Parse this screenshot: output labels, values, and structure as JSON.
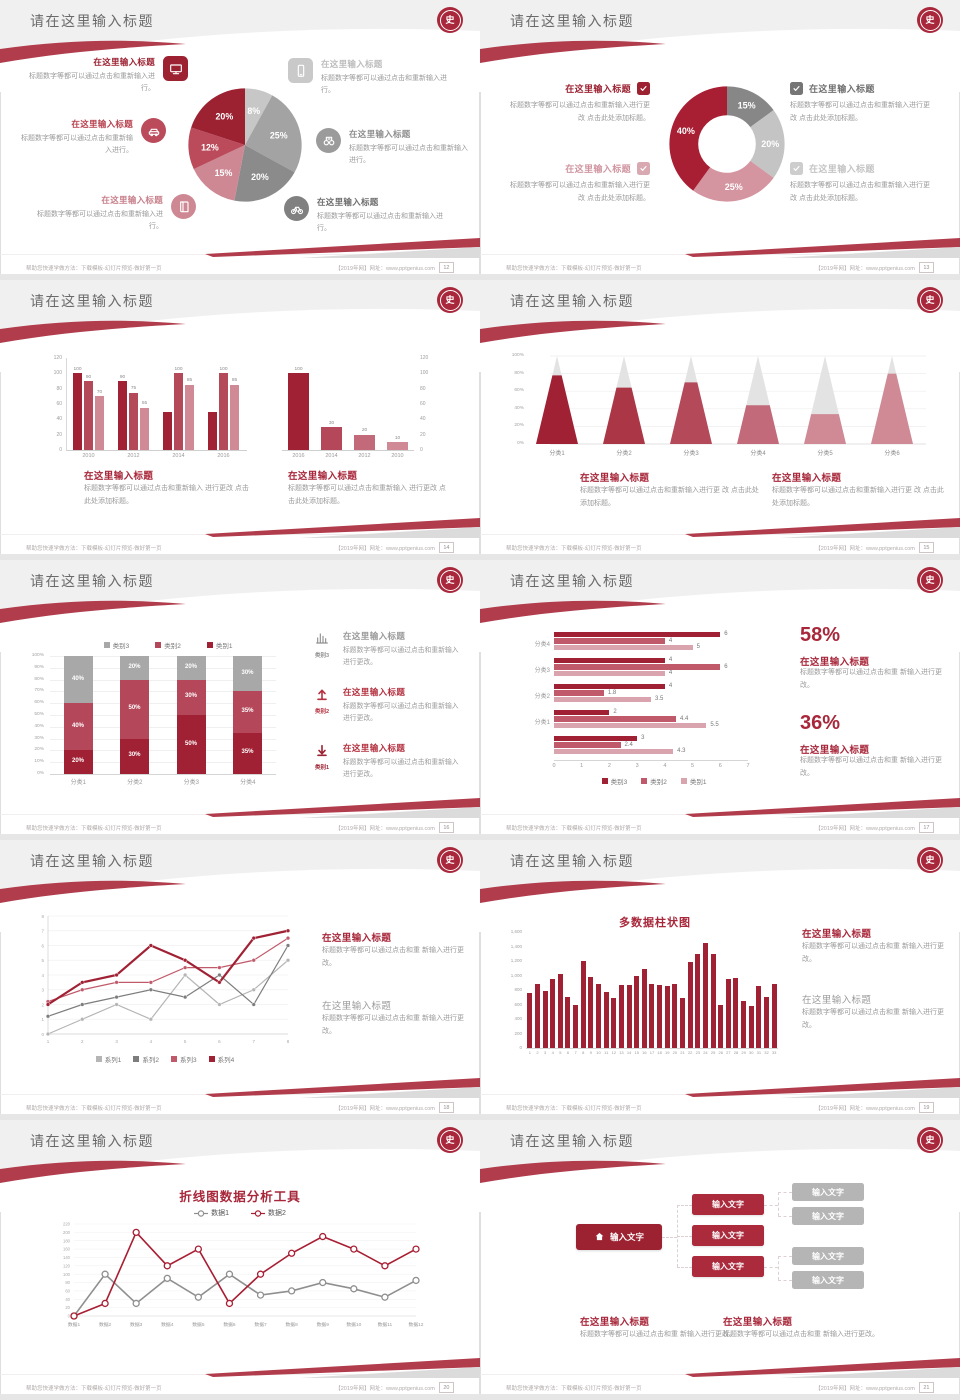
{
  "logo_char": "史",
  "footer": {
    "left": "帮助您快速学做方法：下载模板-幻灯片预览-做好第一页",
    "right": "【2019年网】网址：www.pptgenius.com"
  },
  "colors": {
    "accent": "#a8273a",
    "dark_red": "#9c2232",
    "mid_red": "#b4485a",
    "rose": "#cf8a96",
    "light_rose": "#d9a4ae",
    "gray_dark": "#7c7c7c",
    "gray": "#a6a6a6",
    "gray_light": "#c6c6c6",
    "deco_red": "#b03c4c"
  },
  "slides": [
    {
      "page": "12",
      "title": "请在这里输入标题",
      "type": "pie-features",
      "chart_data": {
        "type": "pie",
        "slices": [
          {
            "label": "8%",
            "value": 8,
            "color": "#c7c7c7"
          },
          {
            "label": "25%",
            "value": 25,
            "color": "#a3a3a3"
          },
          {
            "label": "20%",
            "value": 20,
            "color": "#8b8b8b"
          },
          {
            "label": "15%",
            "value": 15,
            "color": "#cd8894"
          },
          {
            "label": "12%",
            "value": 12,
            "color": "#bb4b5b"
          },
          {
            "label": "20%",
            "value": 20,
            "color": "#9c2232"
          }
        ]
      },
      "features_left": [
        {
          "title": "在这里输入标题",
          "title_color": "#9c2232",
          "text": "标题数字等都可以通过点击和重新输入进行。",
          "icon": "monitor-icon",
          "icon_bg": "#9c2232",
          "icon_shape": "square"
        },
        {
          "title": "在这里输入标题",
          "title_color": "#b8414f",
          "text": "标题数字等都可以通过点击和重新输入进行。",
          "icon": "car-icon",
          "icon_bg": "#bb4b5b",
          "icon_shape": "circle"
        },
        {
          "title": "在这里输入标题",
          "title_color": "#c9808b",
          "text": "标题数字等都可以通过点击和重新输入进行。",
          "icon": "book-icon",
          "icon_bg": "#cd8894",
          "icon_shape": "circle"
        }
      ],
      "features_right": [
        {
          "title": "在这里输入标题",
          "title_color": "#bdbdbd",
          "text": "标题数字等都可以通过点击和重新输入进行。",
          "icon": "phone-icon",
          "icon_bg": "#c9c9c9",
          "icon_shape": "square"
        },
        {
          "title": "在这里输入标题",
          "title_color": "#8f8f8f",
          "text": "标题数字等都可以通过点击和重新输入进行。",
          "icon": "binoculars-icon",
          "icon_bg": "#9b9b9b",
          "icon_shape": "circle"
        },
        {
          "title": "在这里输入标题",
          "title_color": "#6e6e6e",
          "text": "标题数字等都可以通过点击和重新输入进行。",
          "icon": "bike-icon",
          "icon_bg": "#808080",
          "icon_shape": "circle"
        }
      ]
    },
    {
      "page": "13",
      "title": "请在这里输入标题",
      "type": "donut-checklist",
      "chart_data": {
        "type": "pie",
        "donut": true,
        "slices": [
          {
            "label": "15%",
            "value": 15,
            "color": "#878787"
          },
          {
            "label": "20%",
            "value": 20,
            "color": "#c4c4c4"
          },
          {
            "label": "25%",
            "value": 25,
            "color": "#d494a0"
          },
          {
            "label": "40%",
            "value": 40,
            "color": "#a81e33"
          }
        ]
      },
      "items": [
        {
          "side": "left",
          "title": "在这里输入标题",
          "title_color": "#9c2232",
          "check_color": "#9c2232",
          "text": "标题数字等都可以通过点击和重新输入进行更改 点击此处添加标题。"
        },
        {
          "side": "left",
          "title": "在这里输入标题",
          "title_color": "#d096a1",
          "check_color": "#d9a9b2",
          "text": "标题数字等都可以通过点击和重新输入进行更改 点击此处添加标题。"
        },
        {
          "side": "right",
          "title": "在这里输入标题",
          "title_color": "#6f6f6f",
          "check_color": "#757575",
          "text": "标题数字等都可以通过点击和重新输入进行更改 点击此处添加标题。"
        },
        {
          "side": "right",
          "title": "在这里输入标题",
          "title_color": "#c4c4c4",
          "check_color": "#cdcdcd",
          "text": "标题数字等都可以通过点击和重新输入进行更改 点击此处添加标题。"
        }
      ]
    },
    {
      "page": "14",
      "title": "请在这里输入标题",
      "type": "dual-bars",
      "chart_data": [
        {
          "type": "bar",
          "categories": [
            "2010",
            "2012",
            "2014",
            "2016"
          ],
          "group_values": [
            [
              100,
              90,
              70
            ],
            [
              90,
              75,
              55
            ],
            [
              50,
              100,
              85
            ],
            [
              50,
              100,
              85
            ]
          ],
          "value_labels": [
            [
              "100",
              "90",
              "70"
            ],
            [
              "90",
              "75",
              "55"
            ],
            [
              null,
              "100",
              "85"
            ],
            [
              null,
              "100",
              "85"
            ]
          ],
          "ylim": [
            0,
            120
          ],
          "yticks": [
            0,
            20,
            40,
            60,
            80,
            100,
            120
          ],
          "colors": [
            "#a02134",
            "#b4495a",
            "#cf8a96"
          ]
        },
        {
          "type": "bar",
          "categories": [
            "2016",
            "2014",
            "2012",
            "2010"
          ],
          "values": [
            100,
            30,
            20,
            10
          ],
          "value_labels": [
            "100",
            "30",
            "20",
            "10"
          ],
          "ylim": [
            0,
            120
          ],
          "yticks": [
            0,
            20,
            40,
            60,
            80,
            100,
            120
          ],
          "colors": [
            "#a02134",
            "#b4485a",
            "#c2697a",
            "#cf8a96"
          ]
        }
      ],
      "sections": [
        {
          "title": "在这里输入标题",
          "text": "标题数字等都可以通过点击和重新输入 进行更改 点击此处添加标题。"
        },
        {
          "title": "在这里输入标题",
          "text": "标题数字等都可以通过点击和重新输入 进行更改 点击此处添加标题。"
        }
      ]
    },
    {
      "page": "15",
      "title": "请在这里输入标题",
      "type": "pyramids",
      "chart_data": {
        "type": "pyramid",
        "categories": [
          "分类1",
          "分类2",
          "分类3",
          "分类4",
          "分类5",
          "分类6"
        ],
        "values_pct": [
          78,
          64,
          70,
          44,
          34,
          80
        ],
        "colors": [
          "#a02134",
          "#ab3746",
          "#b4495a",
          "#c2697a",
          "#cf8a96",
          "#cf8a96"
        ],
        "yticks": [
          "0%",
          "20%",
          "40%",
          "60%",
          "80%",
          "100%"
        ]
      },
      "sections": [
        {
          "title": "在这里输入标题",
          "text": "标题数字等都可以通过点击和重新输入进行更 改 点击此处添加标题。"
        },
        {
          "title": "在这里输入标题",
          "text": "标题数字等都可以通过点击和重新输入进行更 改 点击此处添加标题。"
        }
      ]
    },
    {
      "page": "16",
      "title": "请在这里输入标题",
      "type": "stacked-features",
      "chart_data": {
        "type": "bar_stacked",
        "categories": [
          "分类1",
          "分类2",
          "分类3",
          "分类4"
        ],
        "series": [
          {
            "name": "类别1",
            "color": "#a02134",
            "values": [
              20,
              30,
              50,
              35
            ]
          },
          {
            "name": "类别2",
            "color": "#b4485a",
            "values": [
              40,
              50,
              30,
              35
            ]
          },
          {
            "name": "类别3",
            "color": "#a8a8a8",
            "values": [
              40,
              20,
              20,
              30
            ]
          }
        ],
        "legend": [
          {
            "label": "类别3",
            "color": "#a8a8a8"
          },
          {
            "label": "类别2",
            "color": "#b4485a"
          },
          {
            "label": "类别1",
            "color": "#a02134"
          }
        ],
        "ylim_pct": [
          0,
          100
        ]
      },
      "features": [
        {
          "icon": "bar-chart-icon",
          "icon_color": "#8f8f8f",
          "caption": "类别3",
          "title": "在这里输入标题",
          "title_color": "#9a9a9a",
          "text": "标题数字等都可以通过点击和重新输入进行更改。"
        },
        {
          "icon": "arrow-up-icon",
          "icon_color": "#b4303f",
          "caption": "类别2",
          "title": "在这里输入标题",
          "title_color": "#b4303f",
          "text": "标题数字等都可以通过点击和重新输入进行更改。"
        },
        {
          "icon": "arrow-down-icon",
          "icon_color": "#9c2232",
          "caption": "类别1",
          "title": "在这里输入标题",
          "title_color": "#b4303f",
          "text": "标题数字等都可以通过点击和重新输入进行更改。"
        }
      ]
    },
    {
      "page": "17",
      "title": "请在这里输入标题",
      "type": "hbars-stats",
      "chart_data": {
        "type": "bar_horizontal",
        "groups": [
          {
            "label": "分类4",
            "values": [
              6,
              4,
              5
            ]
          },
          {
            "label": "分类3",
            "values": [
              4,
              6,
              4
            ]
          },
          {
            "label": "分类2",
            "values": [
              4,
              1.8,
              3.5
            ]
          },
          {
            "label": "分类1",
            "values": [
              2,
              4.4,
              5.5
            ]
          },
          {
            "label": "",
            "values": [
              3,
              2.4,
              4.3
            ]
          }
        ],
        "series_colors": [
          "#a02134",
          "#c05a6b",
          "#d9a4ae"
        ],
        "xticks": [
          0,
          1,
          2,
          3,
          4,
          5,
          6,
          7
        ],
        "legend": [
          {
            "label": "类别3",
            "color": "#a02134"
          },
          {
            "label": "类别2",
            "color": "#c05a6b"
          },
          {
            "label": "类别1",
            "color": "#d9a4ae"
          }
        ]
      },
      "stats": [
        {
          "pct": "58%",
          "title": "在这里输入标题",
          "text": "标题数字等都可以通过点击和重 新输入进行更改。"
        },
        {
          "pct": "36%",
          "title": "在这里输入标题",
          "text": "标题数字等都可以通过点击和重 新输入进行更改。"
        }
      ]
    },
    {
      "page": "18",
      "title": "请在这里输入标题",
      "type": "lines-text",
      "chart_data": {
        "type": "line",
        "x": [
          1,
          2,
          3,
          4,
          5,
          6,
          7,
          8
        ],
        "ylim": [
          0,
          8
        ],
        "series": [
          {
            "name": "系列1",
            "color": "#b5b5b5",
            "values": [
              0,
              1,
              2,
              1,
              4,
              2,
              3,
              5
            ]
          },
          {
            "name": "系列2",
            "color": "#7d7d7d",
            "values": [
              1.2,
              2,
              2.5,
              3,
              2.5,
              4,
              2,
              6
            ]
          },
          {
            "name": "系列3",
            "color": "#c05a6b",
            "values": [
              2.2,
              3,
              3.5,
              3.5,
              4.5,
              4.5,
              5,
              6.5
            ]
          },
          {
            "name": "系列4",
            "color": "#a02134",
            "values": [
              2,
              3.5,
              4,
              6,
              5,
              3.5,
              6.5,
              7
            ],
            "thick": true
          }
        ]
      },
      "sections": [
        {
          "title": "在这里输入标题",
          "title_style": "red",
          "text": "标题数字等都可以通过点击和重 新输入进行更改。"
        },
        {
          "title": "在这里输入标题",
          "title_style": "gray",
          "text": "标题数字等都可以通过点击和重 新输入进行更改。"
        }
      ]
    },
    {
      "page": "19",
      "title": "请在这里输入标题",
      "type": "manybars-text",
      "chart_data": {
        "type": "bar",
        "title": "多数据柱状图",
        "x": [
          1,
          2,
          3,
          4,
          5,
          6,
          7,
          8,
          9,
          10,
          11,
          12,
          13,
          14,
          15,
          16,
          17,
          18,
          19,
          20,
          21,
          22,
          23,
          24,
          25,
          26,
          27,
          28,
          29,
          30,
          31,
          32,
          33
        ],
        "values": [
          760,
          880,
          790,
          950,
          1020,
          700,
          600,
          1200,
          980,
          880,
          770,
          690,
          870,
          870,
          990,
          1090,
          880,
          870,
          860,
          880,
          690,
          1190,
          1300,
          1450,
          1300,
          600,
          950,
          960,
          650,
          580,
          860,
          700,
          880
        ],
        "ylim": [
          0,
          1600
        ],
        "yticks": [
          "0",
          "200",
          "400",
          "600",
          "800",
          "1,000",
          "1,200",
          "1,400",
          "1,600"
        ],
        "color": "#a02134"
      },
      "sections": [
        {
          "title": "在这里输入标题",
          "title_style": "red",
          "text": "标题数字等都可以通过点击和重 新输入进行更改。"
        },
        {
          "title": "在这里输入标题",
          "title_style": "gray",
          "text": "标题数字等都可以通过点击和重 新输入进行更改。"
        }
      ]
    },
    {
      "page": "20",
      "title": "请在这里输入标题",
      "type": "lines-title",
      "chart_data": {
        "type": "line",
        "title": "折线图数据分析工具",
        "categories": [
          "数据1",
          "数据2",
          "数据3",
          "数据4",
          "数据5",
          "数据6",
          "数据7",
          "数据8",
          "数据9",
          "数据10",
          "数据11",
          "数据12"
        ],
        "ylim": [
          0,
          220
        ],
        "ytick_step": 20,
        "series": [
          {
            "name": "数据1",
            "color": "#8f8f8f",
            "values": [
              0,
              100,
              30,
              90,
              45,
              100,
              50,
              60,
              80,
              65,
              45,
              85
            ]
          },
          {
            "name": "数据2",
            "color": "#a81e33",
            "values": [
              0,
              30,
              200,
              120,
              160,
              30,
              100,
              150,
              190,
              160,
              120,
              160
            ]
          }
        ]
      }
    },
    {
      "page": "21",
      "title": "请在这里输入标题",
      "type": "org-text",
      "diagram": {
        "root": {
          "label": "输入文字",
          "icon": "home-icon",
          "color": "#9c2232"
        },
        "mid": [
          {
            "label": "输入文字"
          },
          {
            "label": "输入文字"
          },
          {
            "label": "输入文字"
          }
        ],
        "mid_color": "#ab2a3c",
        "leaves": [
          {
            "label": "输入文字",
            "parent": 0
          },
          {
            "label": "输入文字",
            "parent": 0
          },
          {
            "label": "输入文字",
            "parent": 2
          },
          {
            "label": "输入文字",
            "parent": 2
          }
        ],
        "leaf_color": "#b5b5b5"
      },
      "sections": [
        {
          "title": "在这里输入标题",
          "text": "标题数字等都可以通过点击和重 新输入进行更改。"
        },
        {
          "title": "在这里输入标题",
          "text": "标题数字等都可以通过点击和重 新输入进行更改。"
        }
      ]
    }
  ]
}
